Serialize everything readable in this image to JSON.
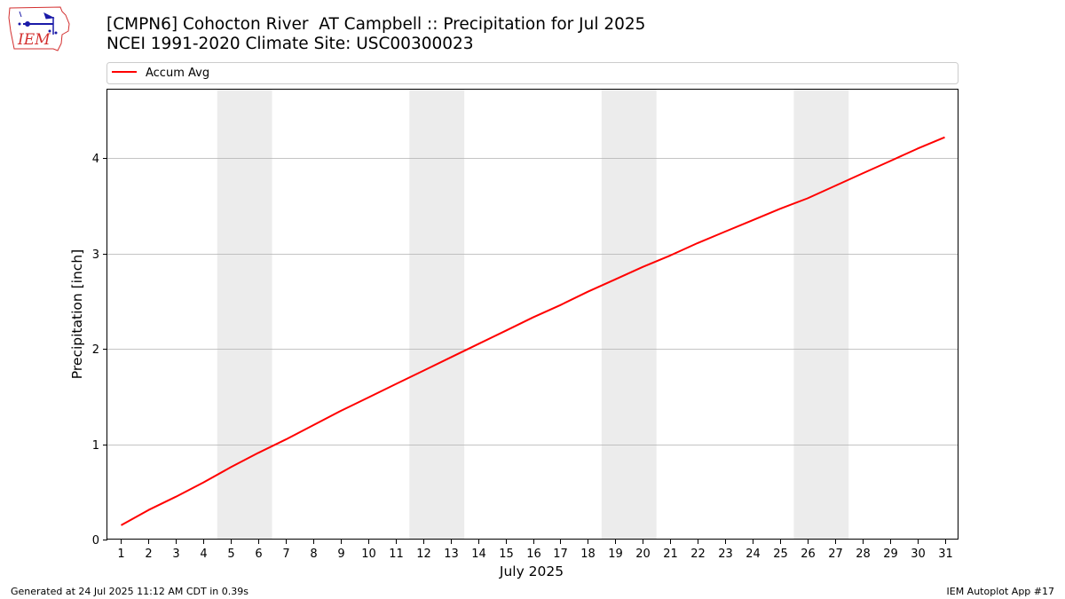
{
  "header": {
    "title_line1": "[CMPN6] Cohocton River  AT Campbell :: Precipitation for Jul 2025",
    "title_line2": "NCEI 1991-2020 Climate Site: USC00300023",
    "logo_text": "IEM"
  },
  "footer": {
    "left": "Generated at 24 Jul 2025 11:12 AM CDT in 0.39s",
    "right": "IEM Autoplot App #17"
  },
  "colors": {
    "series": "#ff0000",
    "weekend_band": "#ececec",
    "grid": "#b0b0b0",
    "logo_red": "#d32f2f",
    "logo_blue": "#1a1aa8"
  },
  "chart_data": {
    "type": "line",
    "xlabel": "July 2025",
    "ylabel": "Precipitation [inch]",
    "x": [
      1,
      2,
      3,
      4,
      5,
      6,
      7,
      8,
      9,
      10,
      11,
      12,
      13,
      14,
      15,
      16,
      17,
      18,
      19,
      20,
      21,
      22,
      23,
      24,
      25,
      26,
      27,
      28,
      29,
      30,
      31
    ],
    "x_ticks": [
      "1",
      "2",
      "3",
      "4",
      "5",
      "6",
      "7",
      "8",
      "9",
      "10",
      "11",
      "12",
      "13",
      "14",
      "15",
      "16",
      "17",
      "18",
      "19",
      "20",
      "21",
      "22",
      "23",
      "24",
      "25",
      "26",
      "27",
      "28",
      "29",
      "30",
      "31"
    ],
    "xlim": [
      0.5,
      31.5
    ],
    "ylim": [
      0,
      4.72
    ],
    "y_ticks": [
      0,
      1,
      2,
      3,
      4
    ],
    "grid": "horizontal",
    "legend_position": "top, spanning full width above plot",
    "shaded_ranges": [
      [
        4.5,
        6.5
      ],
      [
        11.5,
        13.5
      ],
      [
        18.5,
        20.5
      ],
      [
        25.5,
        27.5
      ]
    ],
    "series": [
      {
        "name": "Accum Avg",
        "values": [
          0.15,
          0.31,
          0.45,
          0.6,
          0.76,
          0.91,
          1.05,
          1.2,
          1.35,
          1.49,
          1.63,
          1.77,
          1.91,
          2.05,
          2.19,
          2.33,
          2.46,
          2.6,
          2.73,
          2.86,
          2.98,
          3.11,
          3.23,
          3.35,
          3.47,
          3.58,
          3.71,
          3.84,
          3.97,
          4.1,
          4.22
        ]
      }
    ]
  }
}
